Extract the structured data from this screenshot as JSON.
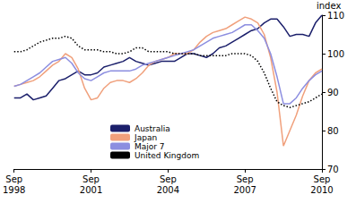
{
  "chart_data": {
    "type": "line",
    "y_label": "index",
    "categories": [
      "Sep\n1998",
      null,
      null,
      null,
      null,
      null,
      null,
      null,
      null,
      null,
      null,
      null,
      "Sep\n2001",
      null,
      null,
      null,
      null,
      null,
      null,
      null,
      null,
      null,
      null,
      null,
      "Sep\n2004",
      null,
      null,
      null,
      null,
      null,
      null,
      null,
      null,
      null,
      null,
      null,
      "Sep\n2007",
      null,
      null,
      null,
      null,
      null,
      null,
      null,
      null,
      null,
      null,
      null,
      "Sep\n2010"
    ],
    "series": [
      {
        "name": "Australia",
        "color": "#1b1f6b",
        "line_style": "solid",
        "values": [
          88.5,
          88.5,
          89.5,
          88,
          88.5,
          89,
          91,
          93,
          93.5,
          94.5,
          95.5,
          94.5,
          94.5,
          95,
          96.5,
          97,
          97.5,
          98,
          99,
          98,
          97.5,
          97,
          97.5,
          98,
          98,
          98,
          99,
          100,
          100,
          99.5,
          99,
          100,
          101.5,
          102,
          103,
          104,
          105,
          106,
          106.5,
          108,
          109,
          109,
          107,
          104.5,
          105,
          105,
          104.5,
          108,
          110
        ]
      },
      {
        "name": "Japan",
        "color": "#f0a07c",
        "line_style": "solid",
        "values": [
          91.5,
          92,
          92.5,
          93,
          94,
          95.5,
          97,
          98,
          100,
          99,
          96,
          91,
          88,
          88.5,
          91,
          92.5,
          93,
          93,
          92.5,
          93.5,
          95,
          97,
          98,
          98.5,
          99,
          100,
          100,
          100,
          101,
          103,
          104.5,
          105.5,
          106,
          106.5,
          107.5,
          108.5,
          109.5,
          109,
          108,
          105,
          99,
          90,
          76,
          80,
          84,
          89,
          93,
          95,
          96
        ]
      },
      {
        "name": "Major 7",
        "color": "#8c8ee0",
        "line_style": "solid",
        "values": [
          91.5,
          92,
          93,
          94,
          95,
          96.5,
          98,
          98.5,
          99,
          97.5,
          95,
          93.5,
          93,
          94,
          95,
          95.5,
          95.5,
          95.5,
          95.5,
          96,
          97,
          97.5,
          98,
          98.5,
          99,
          99.5,
          100,
          100.5,
          101,
          102,
          103,
          104,
          104.5,
          105,
          105.5,
          106.5,
          107.5,
          107.5,
          106,
          104,
          100,
          94,
          87,
          87,
          88.5,
          91,
          93,
          94.5,
          95.5
        ]
      },
      {
        "name": "United Kingdom",
        "color": "#000000",
        "line_style": "dotted",
        "values": [
          100.5,
          100.5,
          101,
          102,
          103,
          103.5,
          104,
          104,
          104.5,
          104,
          102,
          101,
          101,
          101,
          100.5,
          100.5,
          100,
          100,
          100.5,
          101.5,
          101.5,
          100.5,
          100.5,
          100.5,
          100.5,
          100,
          100,
          100,
          100,
          99.5,
          99.5,
          99.5,
          99.5,
          99.5,
          100,
          100,
          100,
          99.5,
          98,
          95,
          91,
          87.5,
          86.5,
          86,
          86.5,
          87,
          87.5,
          88.5,
          89.5
        ]
      }
    ],
    "ylim": [
      70,
      110
    ],
    "yticks": [
      70,
      80,
      90,
      100,
      110
    ],
    "grid": false,
    "legend": "lower left"
  }
}
